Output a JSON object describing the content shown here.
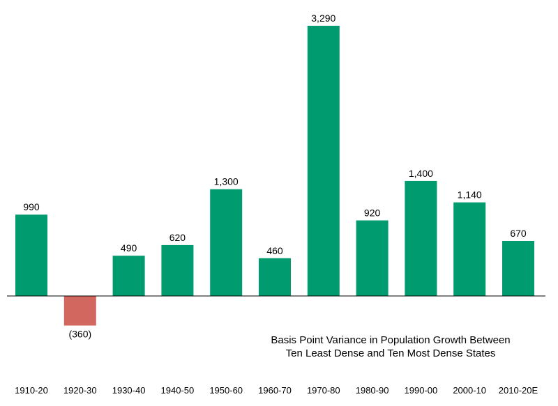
{
  "chart_data": {
    "type": "bar",
    "categories": [
      "1910-20",
      "1920-30",
      "1930-40",
      "1940-50",
      "1950-60",
      "1960-70",
      "1970-80",
      "1980-90",
      "1990-00",
      "2000-10",
      "2010-20E"
    ],
    "values": [
      990,
      -360,
      490,
      620,
      1300,
      460,
      3290,
      920,
      1400,
      1140,
      670
    ],
    "data_labels": [
      "990",
      "(360)",
      "490",
      "620",
      "1,300",
      "460",
      "3,290",
      "920",
      "1,400",
      "1,140",
      "670"
    ],
    "annotation": [
      "Basis Point Variance in Population Growth Between",
      "Ten Least Dense and Ten Most Dense States"
    ],
    "ylim": [
      -400,
      3300
    ],
    "grid": false,
    "colors": {
      "positive": "#009B6F",
      "negative": "#D2675F",
      "axis": "#000000"
    }
  }
}
